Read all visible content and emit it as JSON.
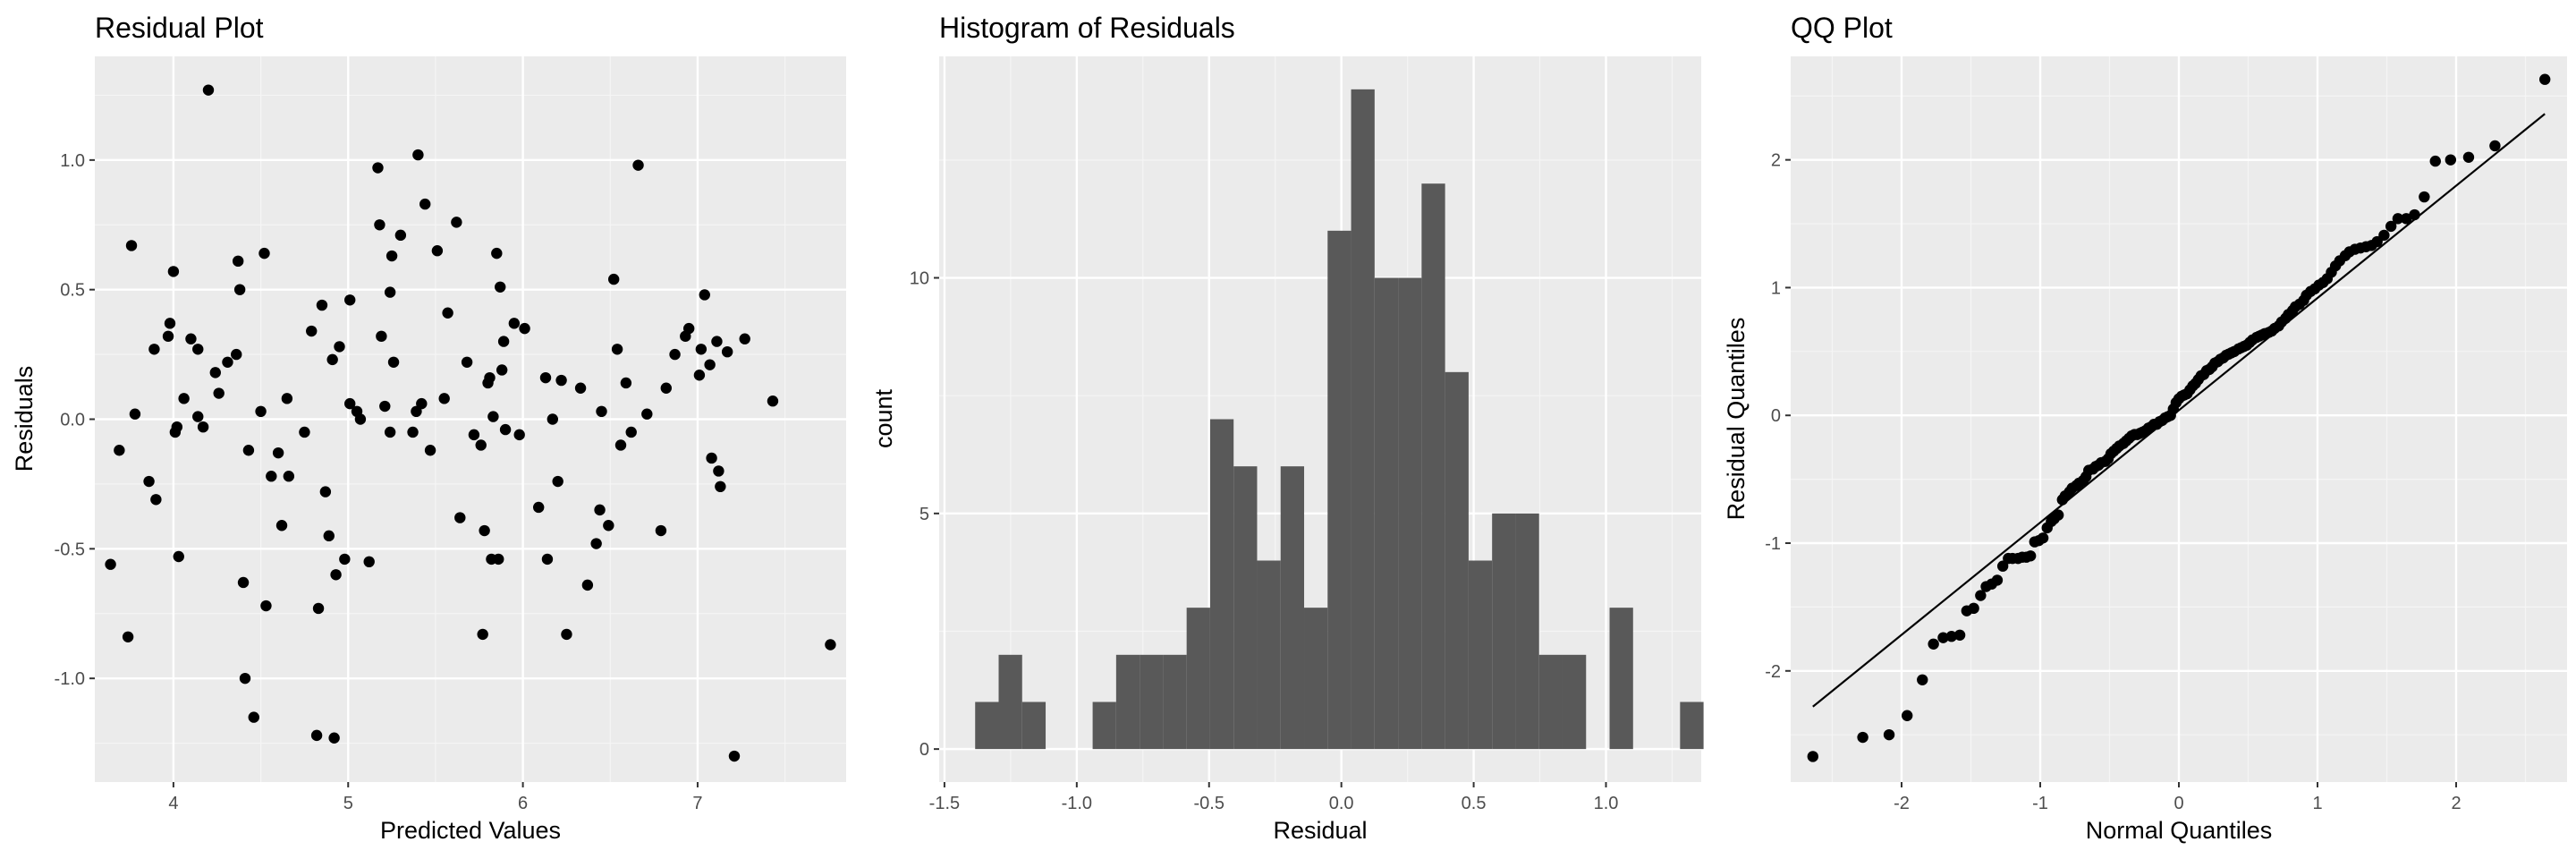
{
  "colors": {
    "panel_bg": "#ebebeb",
    "grid_major": "#ffffff",
    "grid_minor": "#f5f5f5",
    "point": "#000000",
    "bar": "#595959",
    "line": "#000000"
  },
  "chart_data": [
    {
      "type": "scatter",
      "title": "Residual Plot",
      "xlabel": "Predicted Values",
      "ylabel": "Residuals",
      "xlim": [
        3.55,
        7.85
      ],
      "ylim": [
        -1.4,
        1.4
      ],
      "xticks": [
        4,
        5,
        6,
        7
      ],
      "xtick_labels": [
        "4",
        "5",
        "6",
        "7"
      ],
      "yticks": [
        -1.0,
        -0.5,
        0.0,
        0.5,
        1.0
      ],
      "ytick_labels": [
        "-1.0",
        "-0.5",
        "0.0",
        "0.5",
        "1.0"
      ],
      "points": [
        [
          3.64,
          -0.56
        ],
        [
          3.69,
          -0.12
        ],
        [
          3.74,
          -0.84
        ],
        [
          3.76,
          0.67
        ],
        [
          3.78,
          0.02
        ],
        [
          3.86,
          -0.24
        ],
        [
          3.89,
          0.27
        ],
        [
          3.9,
          -0.31
        ],
        [
          3.97,
          0.32
        ],
        [
          3.98,
          0.37
        ],
        [
          4.0,
          0.57
        ],
        [
          4.01,
          -0.05
        ],
        [
          4.02,
          -0.03
        ],
        [
          4.03,
          -0.53
        ],
        [
          4.06,
          0.08
        ],
        [
          4.1,
          0.31
        ],
        [
          4.14,
          0.01
        ],
        [
          4.14,
          0.27
        ],
        [
          4.17,
          -0.03
        ],
        [
          4.2,
          1.27
        ],
        [
          4.24,
          0.18
        ],
        [
          4.26,
          0.1
        ],
        [
          4.31,
          0.22
        ],
        [
          4.36,
          0.25
        ],
        [
          4.37,
          0.61
        ],
        [
          4.38,
          0.5
        ],
        [
          4.4,
          -0.63
        ],
        [
          4.41,
          -1.0
        ],
        [
          4.43,
          -0.12
        ],
        [
          4.46,
          -1.15
        ],
        [
          4.5,
          0.03
        ],
        [
          4.52,
          0.64
        ],
        [
          4.53,
          -0.72
        ],
        [
          4.56,
          -0.22
        ],
        [
          4.6,
          -0.13
        ],
        [
          4.62,
          -0.41
        ],
        [
          4.65,
          0.08
        ],
        [
          4.66,
          -0.22
        ],
        [
          4.75,
          -0.05
        ],
        [
          4.79,
          0.34
        ],
        [
          4.82,
          -1.22
        ],
        [
          4.83,
          -0.73
        ],
        [
          4.85,
          0.44
        ],
        [
          4.87,
          -0.28
        ],
        [
          4.89,
          -0.45
        ],
        [
          4.91,
          0.23
        ],
        [
          4.92,
          -1.23
        ],
        [
          4.93,
          -0.6
        ],
        [
          4.95,
          0.28
        ],
        [
          4.98,
          -0.54
        ],
        [
          5.01,
          0.46
        ],
        [
          5.01,
          0.06
        ],
        [
          5.05,
          0.03
        ],
        [
          5.07,
          0.0
        ],
        [
          5.12,
          -0.55
        ],
        [
          5.17,
          0.97
        ],
        [
          5.18,
          0.75
        ],
        [
          5.19,
          0.32
        ],
        [
          5.21,
          0.05
        ],
        [
          5.24,
          -0.05
        ],
        [
          5.24,
          0.49
        ],
        [
          5.25,
          0.63
        ],
        [
          5.26,
          0.22
        ],
        [
          5.3,
          0.71
        ],
        [
          5.37,
          -0.05
        ],
        [
          5.39,
          0.03
        ],
        [
          5.4,
          1.02
        ],
        [
          5.42,
          0.06
        ],
        [
          5.44,
          0.83
        ],
        [
          5.47,
          -0.12
        ],
        [
          5.51,
          0.65
        ],
        [
          5.55,
          0.08
        ],
        [
          5.57,
          0.41
        ],
        [
          5.62,
          0.76
        ],
        [
          5.64,
          -0.38
        ],
        [
          5.68,
          0.22
        ],
        [
          5.72,
          -0.06
        ],
        [
          5.76,
          -0.1
        ],
        [
          5.77,
          -0.83
        ],
        [
          5.78,
          -0.43
        ],
        [
          5.8,
          0.14
        ],
        [
          5.81,
          0.16
        ],
        [
          5.82,
          -0.54
        ],
        [
          5.83,
          0.01
        ],
        [
          5.85,
          0.64
        ],
        [
          5.86,
          -0.54
        ],
        [
          5.87,
          0.51
        ],
        [
          5.88,
          0.19
        ],
        [
          5.89,
          0.3
        ],
        [
          5.9,
          -0.04
        ],
        [
          5.95,
          0.37
        ],
        [
          5.98,
          -0.06
        ],
        [
          6.01,
          0.35
        ],
        [
          6.09,
          -0.34
        ],
        [
          6.13,
          0.16
        ],
        [
          6.14,
          -0.54
        ],
        [
          6.17,
          0.0
        ],
        [
          6.2,
          -0.24
        ],
        [
          6.22,
          0.15
        ],
        [
          6.25,
          -0.83
        ],
        [
          6.33,
          0.12
        ],
        [
          6.37,
          -0.64
        ],
        [
          6.42,
          -0.48
        ],
        [
          6.44,
          -0.35
        ],
        [
          6.45,
          0.03
        ],
        [
          6.49,
          -0.41
        ],
        [
          6.52,
          0.54
        ],
        [
          6.54,
          0.27
        ],
        [
          6.56,
          -0.1
        ],
        [
          6.59,
          0.14
        ],
        [
          6.62,
          -0.05
        ],
        [
          6.66,
          0.98
        ],
        [
          6.71,
          0.02
        ],
        [
          6.79,
          -0.43
        ],
        [
          6.82,
          0.12
        ],
        [
          6.87,
          0.25
        ],
        [
          6.93,
          0.32
        ],
        [
          6.95,
          0.35
        ],
        [
          7.01,
          0.17
        ],
        [
          7.02,
          0.27
        ],
        [
          7.04,
          0.48
        ],
        [
          7.07,
          0.21
        ],
        [
          7.08,
          -0.15
        ],
        [
          7.11,
          0.3
        ],
        [
          7.12,
          -0.2
        ],
        [
          7.13,
          -0.26
        ],
        [
          7.17,
          0.26
        ],
        [
          7.21,
          -1.3
        ],
        [
          7.27,
          0.31
        ],
        [
          7.43,
          0.07
        ],
        [
          7.76,
          -0.87
        ]
      ]
    },
    {
      "type": "bar",
      "title": "Histogram of Residuals",
      "xlabel": "Residual",
      "ylabel": "count",
      "xlim": [
        -1.52,
        1.36
      ],
      "ylim": [
        -0.7,
        14.7
      ],
      "xticks": [
        -1.5,
        -1.0,
        -0.5,
        0.0,
        0.5,
        1.0
      ],
      "xtick_labels": [
        "-1.5",
        "-1.0",
        "-0.5",
        "0.0",
        "0.5",
        "1.0"
      ],
      "yticks": [
        0,
        5,
        10
      ],
      "ytick_labels": [
        "0",
        "5",
        "10"
      ],
      "bin_start": -1.384,
      "bin_width": 0.0888,
      "counts": [
        1,
        2,
        1,
        0,
        0,
        1,
        2,
        2,
        2,
        3,
        7,
        6,
        4,
        6,
        3,
        11,
        14,
        10,
        10,
        12,
        8,
        4,
        5,
        5,
        2,
        2,
        0,
        3,
        0,
        0,
        1
      ]
    },
    {
      "type": "scatter",
      "title": "QQ Plot",
      "xlabel": "Normal Quantiles",
      "ylabel": "Residual Quantiles",
      "xlim": [
        -2.8,
        2.8
      ],
      "ylim": [
        -2.87,
        2.81
      ],
      "xticks": [
        -2,
        -1,
        0,
        1,
        2
      ],
      "xtick_labels": [
        "-2",
        "-1",
        "0",
        "1",
        "2"
      ],
      "yticks": [
        -2,
        -1,
        0,
        1,
        2
      ],
      "ytick_labels": [
        "-2",
        "-1",
        "0",
        "1",
        "2"
      ],
      "reference_line": [
        [
          -2.64,
          -2.28
        ],
        [
          2.64,
          2.36
        ]
      ],
      "points": [
        [
          -2.64,
          -2.67
        ],
        [
          -2.28,
          -2.52
        ],
        [
          -2.09,
          -2.5
        ],
        [
          -1.96,
          -2.35
        ],
        [
          -1.85,
          -2.07
        ],
        [
          -1.77,
          -1.79
        ],
        [
          -1.7,
          -1.74
        ],
        [
          -1.64,
          -1.73
        ],
        [
          -1.58,
          -1.72
        ],
        [
          -1.53,
          -1.53
        ],
        [
          -1.48,
          -1.51
        ],
        [
          -1.43,
          -1.41
        ],
        [
          -1.39,
          -1.34
        ],
        [
          -1.35,
          -1.32
        ],
        [
          -1.31,
          -1.29
        ],
        [
          -1.27,
          -1.18
        ],
        [
          -1.23,
          -1.12
        ],
        [
          -1.2,
          -1.12
        ],
        [
          -1.16,
          -1.12
        ],
        [
          -1.13,
          -1.11
        ],
        [
          -1.1,
          -1.11
        ],
        [
          -1.07,
          -1.1
        ],
        [
          -1.04,
          -0.99
        ],
        [
          -1.01,
          -0.98
        ],
        [
          -0.98,
          -0.96
        ],
        [
          -0.95,
          -0.88
        ],
        [
          -0.92,
          -0.83
        ],
        [
          -0.9,
          -0.81
        ],
        [
          -0.87,
          -0.78
        ],
        [
          -0.84,
          -0.66
        ],
        [
          -0.82,
          -0.63
        ],
        [
          -0.79,
          -0.6
        ],
        [
          -0.77,
          -0.57
        ],
        [
          -0.74,
          -0.55
        ],
        [
          -0.72,
          -0.53
        ],
        [
          -0.69,
          -0.51
        ],
        [
          -0.67,
          -0.48
        ],
        [
          -0.65,
          -0.43
        ],
        [
          -0.62,
          -0.42
        ],
        [
          -0.6,
          -0.4
        ],
        [
          -0.58,
          -0.39
        ],
        [
          -0.56,
          -0.37
        ],
        [
          -0.53,
          -0.36
        ],
        [
          -0.51,
          -0.34
        ],
        [
          -0.49,
          -0.3
        ],
        [
          -0.47,
          -0.28
        ],
        [
          -0.45,
          -0.26
        ],
        [
          -0.43,
          -0.24
        ],
        [
          -0.4,
          -0.22
        ],
        [
          -0.38,
          -0.2
        ],
        [
          -0.36,
          -0.18
        ],
        [
          -0.34,
          -0.16
        ],
        [
          -0.32,
          -0.15
        ],
        [
          -0.3,
          -0.15
        ],
        [
          -0.28,
          -0.14
        ],
        [
          -0.26,
          -0.13
        ],
        [
          -0.24,
          -0.12
        ],
        [
          -0.22,
          -0.1
        ],
        [
          -0.2,
          -0.09
        ],
        [
          -0.18,
          -0.07
        ],
        [
          -0.16,
          -0.07
        ],
        [
          -0.14,
          -0.05
        ],
        [
          -0.12,
          -0.04
        ],
        [
          -0.1,
          -0.02
        ],
        [
          -0.08,
          -0.01
        ],
        [
          -0.06,
          0.0
        ],
        [
          -0.04,
          0.05
        ],
        [
          -0.02,
          0.1
        ],
        [
          0.0,
          0.13
        ],
        [
          0.02,
          0.15
        ],
        [
          0.04,
          0.16
        ],
        [
          0.06,
          0.17
        ],
        [
          0.08,
          0.2
        ],
        [
          0.1,
          0.23
        ],
        [
          0.12,
          0.25
        ],
        [
          0.14,
          0.28
        ],
        [
          0.16,
          0.31
        ],
        [
          0.18,
          0.32
        ],
        [
          0.2,
          0.35
        ],
        [
          0.22,
          0.36
        ],
        [
          0.24,
          0.38
        ],
        [
          0.26,
          0.41
        ],
        [
          0.28,
          0.42
        ],
        [
          0.3,
          0.44
        ],
        [
          0.32,
          0.45
        ],
        [
          0.34,
          0.47
        ],
        [
          0.36,
          0.48
        ],
        [
          0.38,
          0.49
        ],
        [
          0.4,
          0.5
        ],
        [
          0.43,
          0.52
        ],
        [
          0.45,
          0.53
        ],
        [
          0.47,
          0.54
        ],
        [
          0.49,
          0.55
        ],
        [
          0.51,
          0.57
        ],
        [
          0.53,
          0.59
        ],
        [
          0.56,
          0.61
        ],
        [
          0.58,
          0.62
        ],
        [
          0.6,
          0.63
        ],
        [
          0.62,
          0.64
        ],
        [
          0.65,
          0.65
        ],
        [
          0.67,
          0.66
        ],
        [
          0.69,
          0.68
        ],
        [
          0.72,
          0.7
        ],
        [
          0.74,
          0.73
        ],
        [
          0.77,
          0.76
        ],
        [
          0.79,
          0.79
        ],
        [
          0.82,
          0.82
        ],
        [
          0.84,
          0.85
        ],
        [
          0.87,
          0.87
        ],
        [
          0.9,
          0.9
        ],
        [
          0.92,
          0.94
        ],
        [
          0.95,
          0.97
        ],
        [
          0.98,
          0.99
        ],
        [
          1.01,
          1.02
        ],
        [
          1.04,
          1.04
        ],
        [
          1.07,
          1.07
        ],
        [
          1.1,
          1.12
        ],
        [
          1.13,
          1.17
        ],
        [
          1.16,
          1.21
        ],
        [
          1.2,
          1.25
        ],
        [
          1.23,
          1.28
        ],
        [
          1.27,
          1.3
        ],
        [
          1.31,
          1.31
        ],
        [
          1.35,
          1.32
        ],
        [
          1.39,
          1.33
        ],
        [
          1.43,
          1.36
        ],
        [
          1.48,
          1.41
        ],
        [
          1.53,
          1.48
        ],
        [
          1.58,
          1.54
        ],
        [
          1.64,
          1.54
        ],
        [
          1.7,
          1.57
        ],
        [
          1.77,
          1.71
        ],
        [
          1.85,
          1.99
        ],
        [
          1.96,
          2.0
        ],
        [
          2.09,
          2.02
        ],
        [
          2.28,
          2.11
        ],
        [
          2.64,
          2.63
        ]
      ]
    }
  ]
}
